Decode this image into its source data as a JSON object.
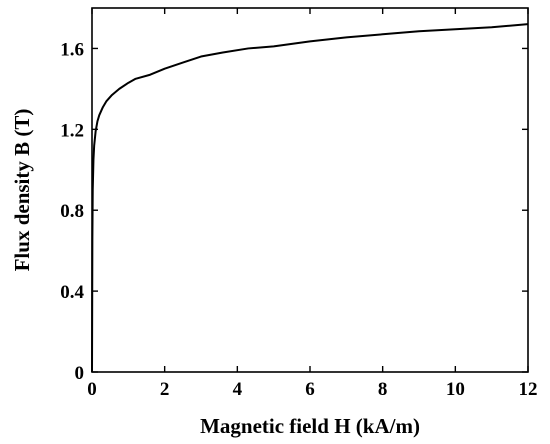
{
  "chart_data": {
    "type": "line",
    "title": "",
    "xlabel": "Magnetic field H (kA/m)",
    "ylabel": "Flux density B (T)",
    "xlim": [
      0,
      12
    ],
    "ylim": [
      0,
      1.8
    ],
    "xticks": [
      0,
      2,
      4,
      6,
      8,
      10,
      12
    ],
    "yticks": [
      0,
      0.4,
      0.8,
      1.2,
      1.6
    ],
    "xtick_labels": [
      "0",
      "2",
      "4",
      "6",
      "8",
      "10",
      "12"
    ],
    "ytick_labels": [
      "0",
      "0.4",
      "0.8",
      "1.2",
      "1.6"
    ],
    "grid": false,
    "series": [
      {
        "x": [
          0,
          0.01,
          0.02,
          0.04,
          0.06,
          0.1,
          0.15,
          0.2,
          0.3,
          0.4,
          0.55,
          0.75,
          1.0,
          1.2,
          1.6,
          2.0,
          2.5,
          3.0,
          3.6,
          4.3,
          5.0,
          6.0,
          7.0,
          8.0,
          9.0,
          10.0,
          11.0,
          12.0
        ],
        "y": [
          0,
          0.65,
          0.9,
          1.05,
          1.12,
          1.19,
          1.24,
          1.27,
          1.31,
          1.34,
          1.37,
          1.4,
          1.43,
          1.45,
          1.47,
          1.5,
          1.53,
          1.56,
          1.58,
          1.6,
          1.61,
          1.635,
          1.655,
          1.67,
          1.685,
          1.695,
          1.705,
          1.72
        ],
        "color": "#000000"
      }
    ]
  }
}
